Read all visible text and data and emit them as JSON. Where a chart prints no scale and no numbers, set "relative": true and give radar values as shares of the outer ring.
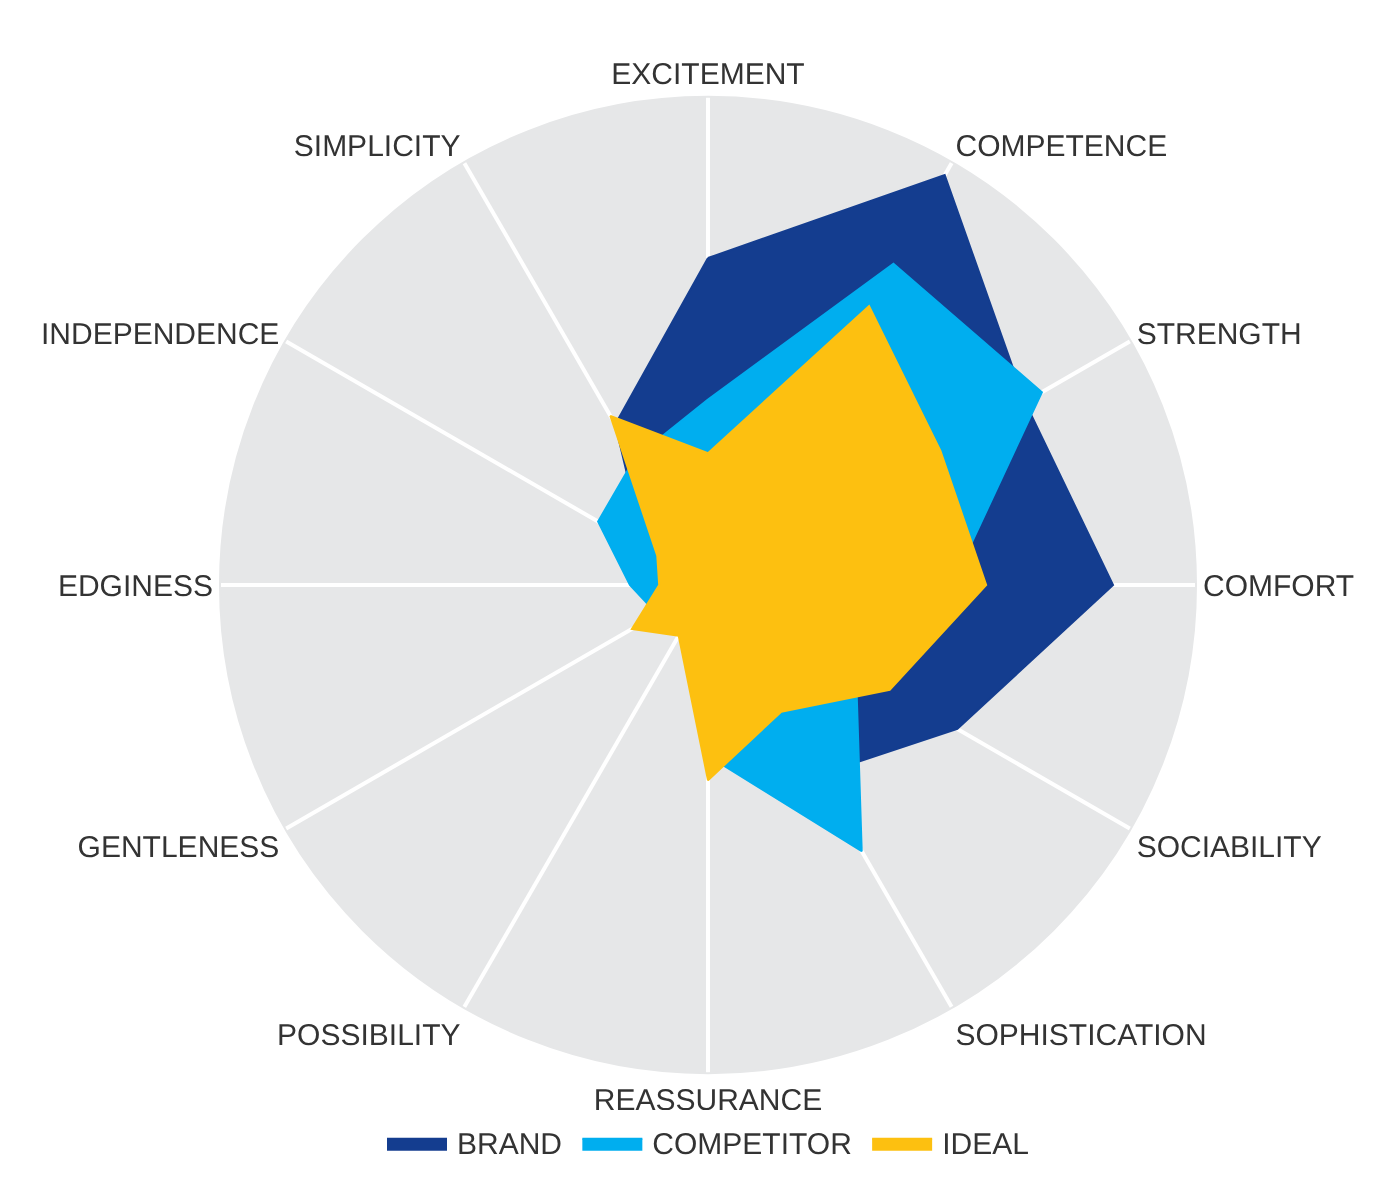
{
  "chart_data": {
    "type": "radar",
    "relative": true,
    "categories": [
      "EXCITEMENT",
      "COMPETENCE",
      "STRENGTH",
      "COMFORT",
      "SOCIABILITY",
      "SOPHISTICATION",
      "REASSURANCE",
      "POSSIBILITY",
      "GENTLENESS",
      "EDGINESS",
      "INDEPENDENCE",
      "SIMPLICITY"
    ],
    "series": [
      {
        "name": "BRAND",
        "color": "#143d8f",
        "values": [
          0.67,
          0.97,
          0.75,
          0.83,
          0.59,
          0.45,
          0.3,
          0.1,
          0.1,
          0.12,
          0.15,
          0.38
        ]
      },
      {
        "name": "COMPETITOR",
        "color": "#00aeef",
        "values": [
          0.38,
          0.76,
          0.79,
          0.5,
          0.35,
          0.63,
          0.35,
          0.1,
          0.12,
          0.16,
          0.26,
          0.3
        ]
      },
      {
        "name": "IDEAL",
        "color": "#fdc010",
        "values": [
          0.27,
          0.66,
          0.55,
          0.57,
          0.43,
          0.3,
          0.4,
          0.12,
          0.18,
          0.1,
          0.12,
          0.4
        ]
      }
    ],
    "legend": "bottom",
    "grid": true
  }
}
